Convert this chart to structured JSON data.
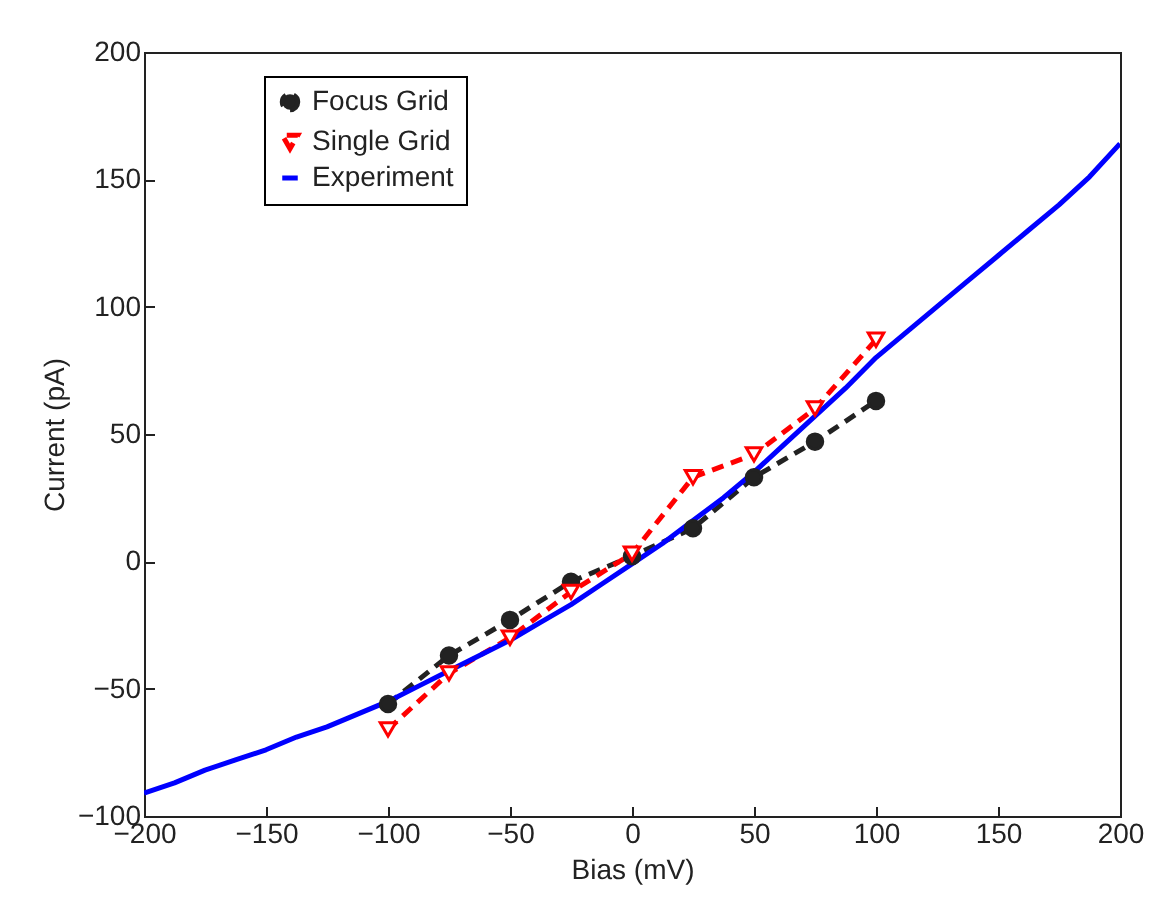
{
  "chart_data": {
    "type": "line",
    "xlabel": "Bias (mV)",
    "ylabel": "Current (pA)",
    "xlim": [
      -200,
      200
    ],
    "ylim": [
      -100,
      200
    ],
    "xticks": [
      -200,
      -150,
      -100,
      -50,
      0,
      50,
      100,
      150,
      200
    ],
    "yticks": [
      -100,
      -50,
      0,
      50,
      100,
      150,
      200
    ],
    "grid": false,
    "legend": "top left",
    "series": [
      {
        "name": "Focus Grid",
        "color": "#222222",
        "marker": "circle",
        "line_style": "dashed",
        "x": [
          -100,
          -75,
          -50,
          -25,
          0,
          25,
          50,
          75,
          100
        ],
        "values": [
          -56,
          -37,
          -23,
          -8,
          2,
          13,
          33,
          47,
          63
        ]
      },
      {
        "name": "Single Grid",
        "color": "#ff0000",
        "marker": "triangle",
        "line_style": "dashed",
        "x": [
          -100,
          -75,
          -50,
          -25,
          0,
          25,
          50,
          75,
          100
        ],
        "values": [
          -66,
          -44,
          -30,
          -12,
          3,
          33,
          42,
          60,
          87
        ]
      },
      {
        "name": "Experiment",
        "color": "#0000ff",
        "marker": "none",
        "line_style": "solid",
        "x": [
          -200,
          -187.5,
          -175,
          -162.5,
          -150,
          -137.5,
          -125,
          -112.5,
          -100,
          -87.5,
          -75,
          -62.5,
          -50,
          -37.5,
          -25,
          -12.5,
          0,
          12.5,
          25,
          37.5,
          50,
          62.5,
          75,
          87.5,
          100,
          112.5,
          125,
          137.5,
          150,
          162.5,
          175,
          187.5,
          200
        ],
        "values": [
          -91,
          -87,
          -82,
          -78,
          -74,
          -69,
          -65,
          -60,
          -55,
          -49,
          -43,
          -37,
          -31,
          -24,
          -17,
          -9,
          -1,
          7,
          16,
          25,
          35,
          46,
          57,
          68,
          80,
          90,
          100,
          110,
          120,
          130,
          140,
          151,
          164
        ]
      }
    ]
  }
}
